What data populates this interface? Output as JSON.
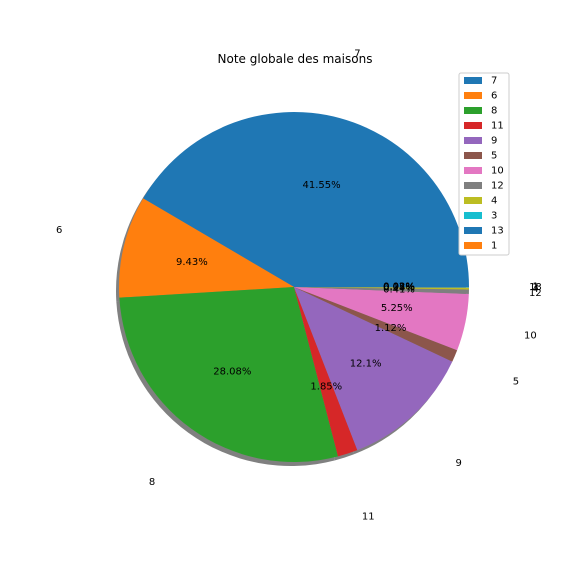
{
  "chart_data": {
    "type": "pie",
    "title": "Note globale des maisons",
    "xlabel": "",
    "ylabel": "",
    "shadow": true,
    "legend_position": "top-right",
    "slices": [
      {
        "label": "7",
        "value": 41.55,
        "pct_label": "41.55%",
        "color": "#1f77b4"
      },
      {
        "label": "6",
        "value": 9.43,
        "pct_label": "9.43%",
        "color": "#ff7f0e"
      },
      {
        "label": "8",
        "value": 28.08,
        "pct_label": "28.08%",
        "color": "#2ca02c"
      },
      {
        "label": "11",
        "value": 1.85,
        "pct_label": "1.85%",
        "color": "#d62728"
      },
      {
        "label": "9",
        "value": 12.1,
        "pct_label": "12.1%",
        "color": "#9467bd"
      },
      {
        "label": "5",
        "value": 1.12,
        "pct_label": "1.12%",
        "color": "#8c564b"
      },
      {
        "label": "10",
        "value": 5.25,
        "pct_label": "5.25%",
        "color": "#e377c2"
      },
      {
        "label": "12",
        "value": 0.41,
        "pct_label": "0.41%",
        "color": "#7f7f7f"
      },
      {
        "label": "4",
        "value": 0.14,
        "pct_label": "0.14%",
        "color": "#bcbd22"
      },
      {
        "label": "3",
        "value": 0.05,
        "pct_label": "0.05%",
        "color": "#17becf"
      },
      {
        "label": "13",
        "value": 0.02,
        "pct_label": "0.02%",
        "color": "#1f77b4"
      },
      {
        "label": "1",
        "value": 0.02,
        "pct_label": "0.02%",
        "color": "#ff7f0e"
      }
    ]
  }
}
